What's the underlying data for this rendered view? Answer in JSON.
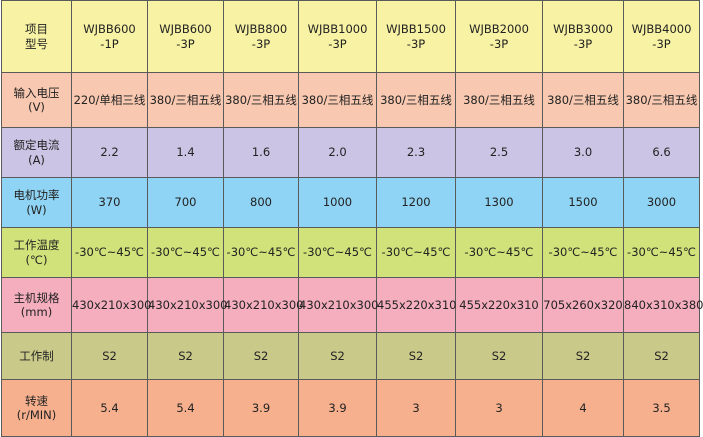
{
  "header": {
    "label": [
      "项目",
      "型号"
    ],
    "models": [
      [
        "WJBB600",
        "-1P"
      ],
      [
        "WJBB600",
        "-3P"
      ],
      [
        "WJBB800",
        "-3P"
      ],
      [
        "WJBB1000",
        "-3P"
      ],
      [
        "WJBB1500",
        "-3P"
      ],
      [
        "WJBB2000",
        "-3P"
      ],
      [
        "WJBB3000",
        "-3P"
      ],
      [
        "WJBB4000",
        "-3P"
      ]
    ]
  },
  "rows": [
    {
      "label": [
        "输入电压",
        "(V)"
      ],
      "color": "#f8c8b0",
      "values": [
        "220/单相三线",
        "380/三相五线",
        "380/三相五线",
        "380/三相五线",
        "380/三相五线",
        "380/三相五线",
        "380/三相五线",
        "380/三相五线"
      ]
    },
    {
      "label": [
        "额定电流",
        "(A)"
      ],
      "color": "#cbc4e4",
      "values": [
        "2.2",
        "1.4",
        "1.6",
        "2.0",
        "2.3",
        "2.5",
        "3.0",
        "6.6"
      ]
    },
    {
      "label": [
        "电机功率",
        "(W)"
      ],
      "color": "#8fd4f4",
      "values": [
        "370",
        "700",
        "800",
        "1000",
        "1200",
        "1300",
        "1500",
        "3000"
      ]
    },
    {
      "label": [
        "工作温度",
        "(℃)"
      ],
      "color": "#d2e27a",
      "values": [
        "-30℃~45℃",
        "-30℃~45℃",
        "-30℃~45℃",
        "-30℃~45℃",
        "-30℃~45℃",
        "-30℃~45℃",
        "-30℃~45℃",
        "-30℃~45℃"
      ]
    },
    {
      "label": [
        "主机规格",
        "(mm)"
      ],
      "color": "#f4aebe",
      "values": [
        "430x210x300",
        "430x210x300",
        "430x210x300",
        "430x210x300",
        "455x220x310",
        "455x220x310",
        "705x260x320",
        "840x310x380"
      ]
    },
    {
      "label": [
        "工作制"
      ],
      "color": "#c9c98a",
      "values": [
        "S2",
        "S2",
        "S2",
        "S2",
        "S2",
        "S2",
        "S2",
        "S2"
      ]
    },
    {
      "label": [
        "转速",
        "(r/MIN)"
      ],
      "color": "#f6b08e",
      "values": [
        "5.4",
        "5.4",
        "3.9",
        "3.9",
        "3",
        "3",
        "4",
        "3.5"
      ]
    }
  ],
  "colors": {
    "header_bg": "#f8f3a4",
    "border": "#5a5a5a",
    "text": "#222222"
  }
}
